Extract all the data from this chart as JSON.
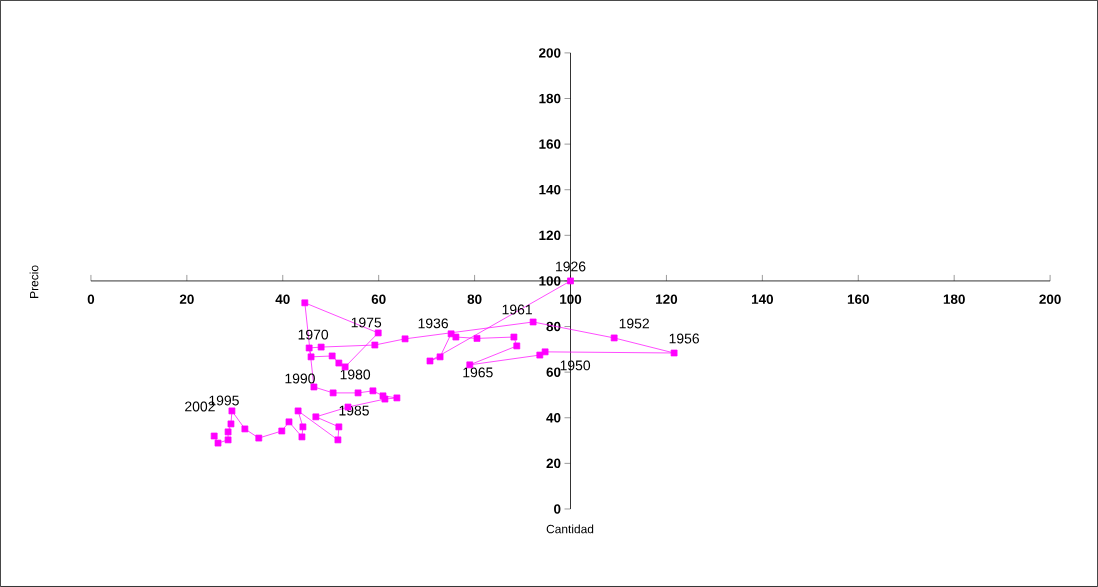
{
  "chart_data": {
    "type": "line",
    "xlabel": "Cantidad",
    "ylabel": "Precio",
    "xlim": [
      0,
      200
    ],
    "ylim": [
      0,
      200
    ],
    "xticks": [
      0,
      20,
      40,
      60,
      80,
      100,
      120,
      140,
      160,
      180,
      200
    ],
    "yticks": [
      0,
      20,
      40,
      60,
      80,
      100,
      120,
      140,
      160,
      180,
      200
    ],
    "marker": "square",
    "line_style": "solid",
    "series": [
      {
        "color": "#ff00ff",
        "x": [
          100,
          70.7,
          72.8,
          75.1,
          76.1,
          80.5,
          88.2,
          88.8,
          79.0,
          93.6,
          94.7,
          121.6,
          109.1,
          92.2,
          65.5,
          59.2,
          48.0,
          45.5,
          45.9,
          50.3,
          51.7,
          53.0,
          59.9,
          44.6,
          46.5,
          50.5,
          55.7,
          58.8,
          60.9,
          63.8,
          61.3,
          53.6,
          46.9,
          51.7,
          51.5,
          43.2,
          44.2,
          44.0,
          41.3,
          39.8,
          35.0,
          32.1,
          29.4,
          29.2,
          28.6,
          28.6,
          26.5,
          25.7
        ],
        "values": [
          100,
          64.9,
          66.7,
          76.8,
          75.4,
          74.8,
          75.4,
          71.5,
          63.2,
          67.5,
          68.9,
          68.4,
          75.0,
          82.0,
          74.6,
          71.9,
          71.0,
          70.6,
          66.7,
          67.1,
          64.0,
          62.3,
          77.2,
          90.4,
          53.5,
          50.9,
          50.9,
          51.8,
          49.6,
          48.7,
          48.2,
          44.7,
          40.4,
          36.0,
          30.3,
          43.0,
          36.0,
          31.6,
          38.2,
          34.2,
          31.1,
          35.1,
          43.0,
          37.3,
          33.8,
          30.3,
          28.9,
          32.0
        ]
      }
    ],
    "annotations": [
      {
        "text": "1926",
        "x": 100,
        "y": 100
      },
      {
        "text": "1936",
        "x": 75.1,
        "y": 76.8
      },
      {
        "text": "1950",
        "x": 94.7,
        "y": 68.9
      },
      {
        "text": "1952",
        "x": 109.1,
        "y": 75.0
      },
      {
        "text": "1956",
        "x": 121.6,
        "y": 68.4
      },
      {
        "text": "1961",
        "x": 92.2,
        "y": 82.0
      },
      {
        "text": "1965",
        "x": 79.0,
        "y": 63.2
      },
      {
        "text": "1970",
        "x": 48.0,
        "y": 71.0
      },
      {
        "text": "1975",
        "x": 59.9,
        "y": 77.2
      },
      {
        "text": "1980",
        "x": 53.0,
        "y": 62.3
      },
      {
        "text": "1985",
        "x": 53.6,
        "y": 44.7
      },
      {
        "text": "1990",
        "x": 46.5,
        "y": 53.5
      },
      {
        "text": "1995",
        "x": 29.4,
        "y": 43.0
      },
      {
        "text": "2002",
        "x": 29.4,
        "y": 43.0
      }
    ]
  }
}
